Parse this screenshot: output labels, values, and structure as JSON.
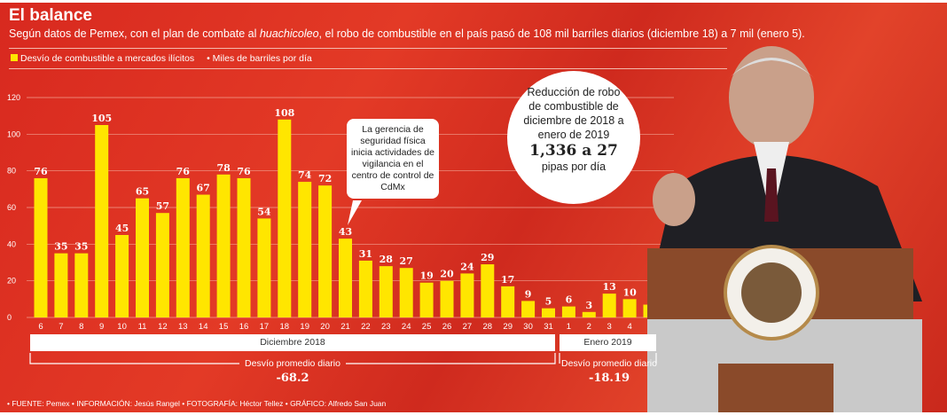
{
  "header": {
    "title": "El balance",
    "subtitle_pre": "Según datos de Pemex, con el plan de combate al ",
    "subtitle_em": "huachicoleo",
    "subtitle_post": ", el robo de combustible en el país pasó de 108 mil barriles diarios (diciembre 18) a 7 mil (enero 5)."
  },
  "legend": {
    "series": "Desvío de combustible a mercados ilícitos",
    "unit": "• Miles de barriles por día"
  },
  "callout": "La gerencia de seguridad física inicia actividades de vigilancia en el centro de control de  CdMx",
  "circle": {
    "text": "Reducción de robo de combustible de diciembre de 2018 a enero de 2019",
    "big": "1,336 a 27",
    "unit": "pipas por día"
  },
  "months": [
    {
      "label": "Diciembre 2018",
      "avg_label": "Desvío promedio diario",
      "avg": "-68.2"
    },
    {
      "label": "Enero 2019",
      "avg_label": "Desvío promedio diario",
      "avg": "-18.19"
    }
  ],
  "credits": "• FUENTE: Pemex   • INFORMACIÓN: Jesús Rangel   • FOTOGRAFÍA: Héctor Tellez   • GRÁFICO: Alfredo San Juan",
  "colors": {
    "bar": "#ffe600",
    "background": "#d8291f"
  },
  "chart_data": {
    "type": "bar",
    "categories": [
      "6",
      "7",
      "8",
      "9",
      "10",
      "11",
      "12",
      "13",
      "14",
      "15",
      "16",
      "17",
      "18",
      "19",
      "20",
      "21",
      "22",
      "23",
      "24",
      "25",
      "26",
      "27",
      "28",
      "29",
      "30",
      "31",
      "1",
      "2",
      "3",
      "4",
      "5"
    ],
    "values": [
      76,
      35,
      35,
      105,
      45,
      65,
      57,
      76,
      67,
      78,
      76,
      54,
      108,
      74,
      72,
      43,
      31,
      28,
      27,
      19,
      20,
      24,
      29,
      17,
      9,
      5,
      6,
      3,
      13,
      10,
      7
    ],
    "yticks": [
      0,
      20,
      40,
      60,
      80,
      100,
      120
    ],
    "ylim": [
      0,
      120
    ],
    "grid": true
  }
}
